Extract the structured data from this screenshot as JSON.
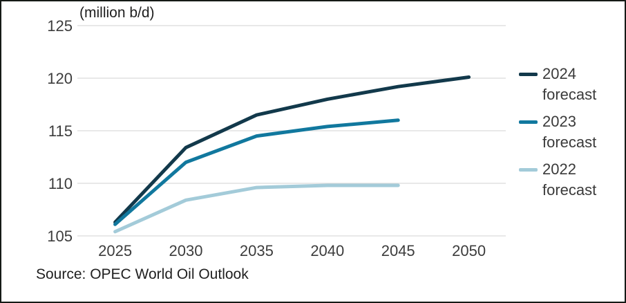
{
  "chart_data": {
    "type": "line",
    "unit_label": "(million b/d)",
    "x_ticks": [
      "2025",
      "2030",
      "2035",
      "2040",
      "2045",
      "2050"
    ],
    "y_ticks": [
      125,
      120,
      115,
      110,
      105
    ],
    "ylim": [
      105,
      125
    ],
    "xlim": [
      2025,
      2050
    ],
    "grid": true,
    "legend_position": "right",
    "gridline_color": "#d9d9d9",
    "tick_color": "#3c3c3c",
    "series": [
      {
        "name": "2024 forecast",
        "legend": {
          "line1": "2024",
          "line2": "forecast"
        },
        "color": "#12394b",
        "x": [
          2025,
          2030,
          2035,
          2040,
          2045,
          2050
        ],
        "values": [
          106.3,
          113.4,
          116.5,
          118.0,
          119.2,
          120.1
        ]
      },
      {
        "name": "2023 forecast",
        "legend": {
          "line1": "2023",
          "line2": "forecast"
        },
        "color": "#11789e",
        "x": [
          2025,
          2030,
          2035,
          2040,
          2045
        ],
        "values": [
          106.1,
          112.0,
          114.5,
          115.4,
          116.0
        ]
      },
      {
        "name": "2022 forecast",
        "legend": {
          "line1": "2022",
          "line2": "forecast"
        },
        "color": "#a3cbd9",
        "x": [
          2025,
          2030,
          2035,
          2040,
          2045
        ],
        "values": [
          105.4,
          108.4,
          109.6,
          109.8,
          109.8
        ]
      }
    ]
  },
  "source": {
    "text": "Source: OPEC World Oil Outlook"
  }
}
